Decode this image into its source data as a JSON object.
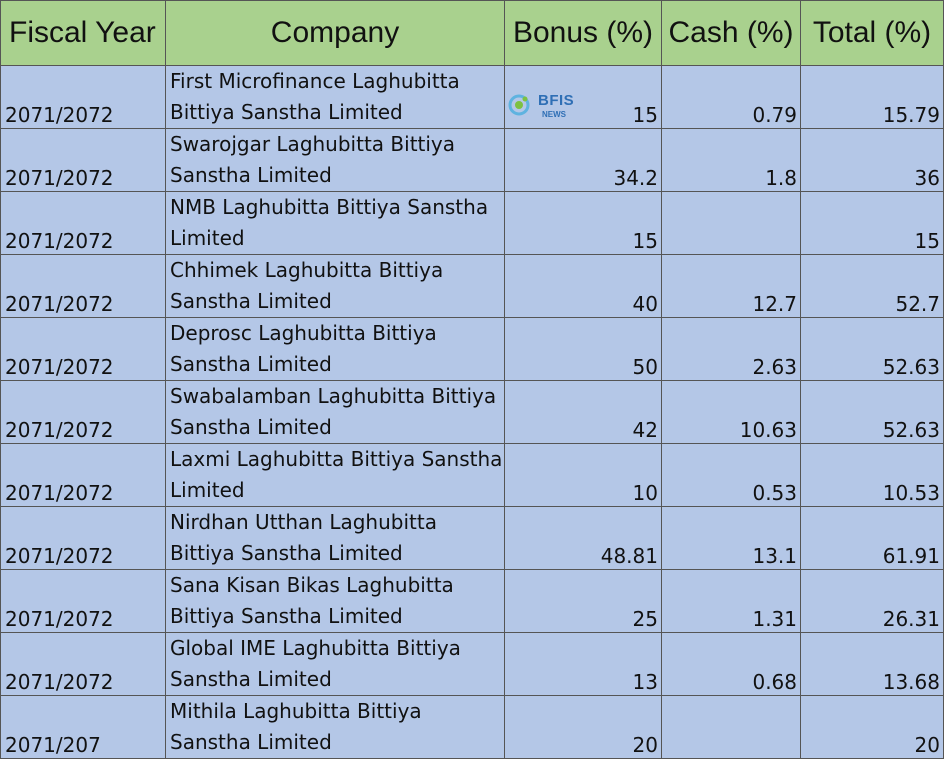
{
  "headers": {
    "fiscal_year": "Fiscal Year",
    "company": "Company",
    "bonus": "Bonus (%)",
    "cash": "Cash (%)",
    "total": "Total (%)"
  },
  "rows": [
    {
      "year": "2071/2072",
      "company": "First Microfinance Laghubitta Bittiya Sanstha Limited",
      "bonus": "15",
      "cash": "0.79",
      "total": "15.79"
    },
    {
      "year": "2071/2072",
      "company": "Swarojgar Laghubitta Bittiya Sanstha Limited",
      "bonus": "34.2",
      "cash": "1.8",
      "total": "36"
    },
    {
      "year": "2071/2072",
      "company": "NMB Laghubitta Bittiya Sanstha Limited",
      "bonus": "15",
      "cash": "",
      "total": "15"
    },
    {
      "year": "2071/2072",
      "company": "Chhimek Laghubitta Bittiya Sanstha Limited",
      "bonus": "40",
      "cash": "12.7",
      "total": "52.7"
    },
    {
      "year": "2071/2072",
      "company": "Deprosc Laghubitta Bittiya Sanstha Limited",
      "bonus": "50",
      "cash": "2.63",
      "total": "52.63"
    },
    {
      "year": "2071/2072",
      "company": "Swabalamban Laghubitta Bittiya Sanstha Limited",
      "bonus": "42",
      "cash": "10.63",
      "total": "52.63"
    },
    {
      "year": "2071/2072",
      "company": "Laxmi Laghubitta Bittiya Sanstha Limited",
      "bonus": "10",
      "cash": "0.53",
      "total": "10.53"
    },
    {
      "year": "2071/2072",
      "company": "Nirdhan Utthan Laghubitta Bittiya Sanstha Limited",
      "bonus": "48.81",
      "cash": "13.1",
      "total": "61.91"
    },
    {
      "year": "2071/2072",
      "company": "Sana Kisan Bikas Laghubitta Bittiya Sanstha Limited",
      "bonus": "25",
      "cash": "1.31",
      "total": "26.31"
    },
    {
      "year": "2071/2072",
      "company": "Global IME Laghubitta Bittiya Sanstha Limited",
      "bonus": "13",
      "cash": "0.68",
      "total": "13.68"
    },
    {
      "year": "2071/207",
      "company": "Mithila Laghubitta Bittiya Sanstha Limited",
      "bonus": "20",
      "cash": "",
      "total": "20"
    }
  ],
  "watermark": {
    "text": "BFIS",
    "sub": "NEWS"
  },
  "colors": {
    "header_bg": "#a9d18e",
    "row_bg": "#b4c7e7",
    "grid": "#555555",
    "logo_blue": "#2f6fb5"
  }
}
